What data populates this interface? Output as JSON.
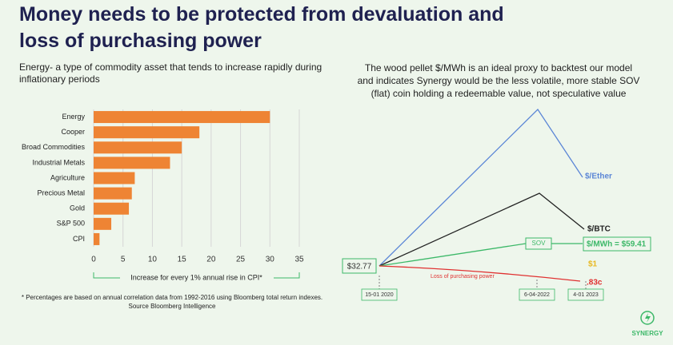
{
  "header": {
    "title": "Money needs to be protected from devaluation and loss of purchasing power"
  },
  "left_text": "Energy- a type of commodity asset that tends to increase rapidly during inflationary periods",
  "chart_data": {
    "type": "bar",
    "orientation": "horizontal",
    "categories": [
      "Energy",
      "Cooper",
      "Broad Commodities",
      "Industrial Metals",
      "Agriculture",
      "Precious Metal",
      "Gold",
      "S&P 500",
      "CPI"
    ],
    "values": [
      30,
      18,
      15,
      13,
      7,
      6.5,
      6,
      3,
      1
    ],
    "color": "#ee8434",
    "xlim": [
      0,
      35
    ],
    "xticks": [
      0,
      5,
      10,
      15,
      20,
      25,
      30,
      35
    ],
    "grid": true,
    "x_label": "Increase for every 1%  annual rise in CPI*",
    "footnote": "* Percentages are based on annual correlation data from 1992-2016 using Bloomberg total return indexes. Source Bloomberg Intelligence"
  },
  "right_text": "The wood pellet $/MWh is an ideal proxy to backtest our model and indicates Synergy would be the less volatile, more stable SOV (flat) coin holding a redeemable value, not speculative value",
  "diagram": {
    "start": "$32.77",
    "ether": "$/Ether",
    "btc": "$/BTC",
    "sov": "SOV",
    "mwh": "$/MWh = $59.41",
    "one": "$1",
    "cents": ".83c",
    "loss": "Loss of purchasing power",
    "dates": [
      "15-01 2020",
      "6-04-2022",
      "4-01 2023"
    ]
  },
  "logo": "SYNERGY"
}
